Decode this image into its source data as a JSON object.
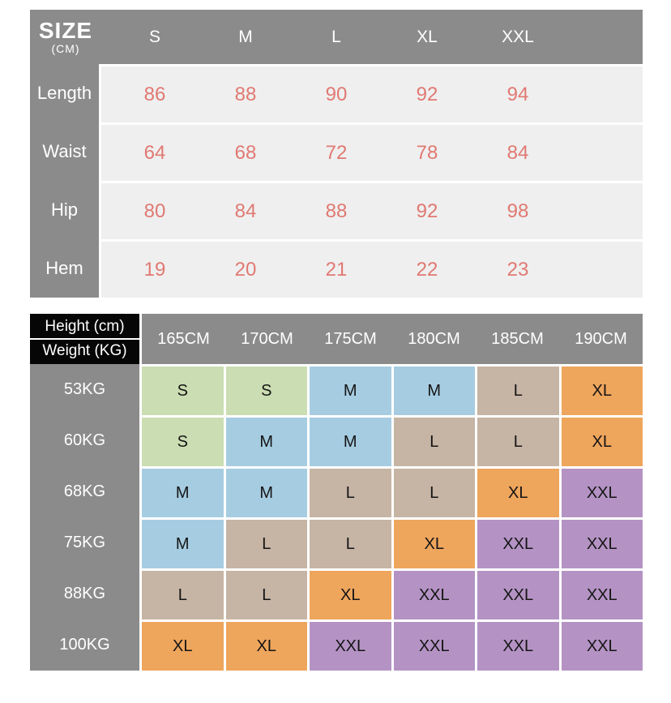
{
  "palette": {
    "page_bg": "#ffffff",
    "header_gray": "#8b8b8b",
    "header_text": "#ffffff",
    "row_bg": "#efefef",
    "value_red": "#e07972",
    "corner_black": "#060606",
    "cell_text": "#151515"
  },
  "chart_data": [
    {
      "type": "table",
      "title": "SIZE",
      "subtitle": "(CM)",
      "columns": [
        "S",
        "M",
        "L",
        "XL",
        "XXL"
      ],
      "rows": [
        {
          "label": "Length",
          "values": [
            86,
            88,
            90,
            92,
            94
          ]
        },
        {
          "label": "Waist",
          "values": [
            64,
            68,
            72,
            78,
            84
          ]
        },
        {
          "label": "Hip",
          "values": [
            80,
            84,
            88,
            92,
            98
          ]
        },
        {
          "label": "Hem",
          "values": [
            19,
            20,
            21,
            22,
            23
          ]
        }
      ]
    },
    {
      "type": "table",
      "corner_top": "Height (cm)",
      "corner_bottom": "Weight (KG)",
      "columns": [
        "165CM",
        "170CM",
        "175CM",
        "180CM",
        "185CM",
        "190CM"
      ],
      "rows": [
        {
          "label": "53KG",
          "sizes": [
            "S",
            "S",
            "M",
            "M",
            "L",
            "XL"
          ]
        },
        {
          "label": "60KG",
          "sizes": [
            "S",
            "M",
            "M",
            "L",
            "L",
            "XL"
          ]
        },
        {
          "label": "68KG",
          "sizes": [
            "M",
            "M",
            "L",
            "L",
            "XL",
            "XXL"
          ]
        },
        {
          "label": "75KG",
          "sizes": [
            "M",
            "L",
            "L",
            "XL",
            "XXL",
            "XXL"
          ]
        },
        {
          "label": "88KG",
          "sizes": [
            "L",
            "L",
            "XL",
            "XXL",
            "XXL",
            "XXL"
          ]
        },
        {
          "label": "100KG",
          "sizes": [
            "XL",
            "XL",
            "XXL",
            "XXL",
            "XXL",
            "XXL"
          ]
        }
      ],
      "size_colors": {
        "S": "#cbddb2",
        "M": "#a6cce1",
        "L": "#c6b4a4",
        "XL": "#eea55c",
        "XXL": "#b493c4"
      }
    }
  ]
}
